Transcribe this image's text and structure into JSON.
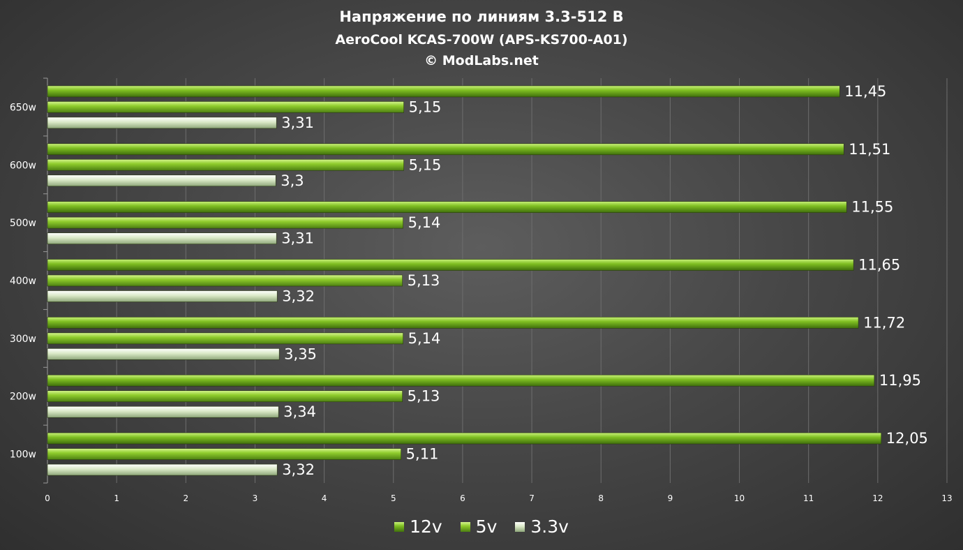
{
  "chart_data": {
    "type": "bar",
    "orientation": "horizontal",
    "title": "Напряжение по линиям 3.3-512 В",
    "subtitle": "AeroCool KCAS-700W (APS-KS700-A01)",
    "credit": "© ModLabs.net",
    "categories": [
      "650w",
      "600w",
      "500w",
      "400w",
      "300w",
      "200w",
      "100w"
    ],
    "series": [
      {
        "name": "12v",
        "values": [
          11.45,
          11.51,
          11.55,
          11.65,
          11.72,
          11.95,
          12.05
        ],
        "labels": [
          "11,45",
          "11,51",
          "11,55",
          "11,65",
          "11,72",
          "11,95",
          "12,05"
        ],
        "color": "#6aa51c"
      },
      {
        "name": "5v",
        "values": [
          5.15,
          5.15,
          5.14,
          5.13,
          5.14,
          5.13,
          5.11
        ],
        "labels": [
          "5,15",
          "5,15",
          "5,14",
          "5,13",
          "5,14",
          "5,13",
          "5,11"
        ],
        "color": "#7fbf22"
      },
      {
        "name": "3.3v",
        "values": [
          3.31,
          3.3,
          3.31,
          3.32,
          3.35,
          3.34,
          3.32
        ],
        "labels": [
          "3,31",
          "3,3",
          "3,31",
          "3,32",
          "3,35",
          "3,34",
          "3,32"
        ],
        "color": "#c9dcb0"
      }
    ],
    "xlim": [
      0,
      13
    ],
    "xticks": [
      "0",
      "1",
      "2",
      "3",
      "4",
      "5",
      "6",
      "7",
      "8",
      "9",
      "10",
      "11",
      "12",
      "13"
    ],
    "xlabel": "",
    "ylabel": "",
    "grid": "vertical",
    "legend": "bottom"
  }
}
